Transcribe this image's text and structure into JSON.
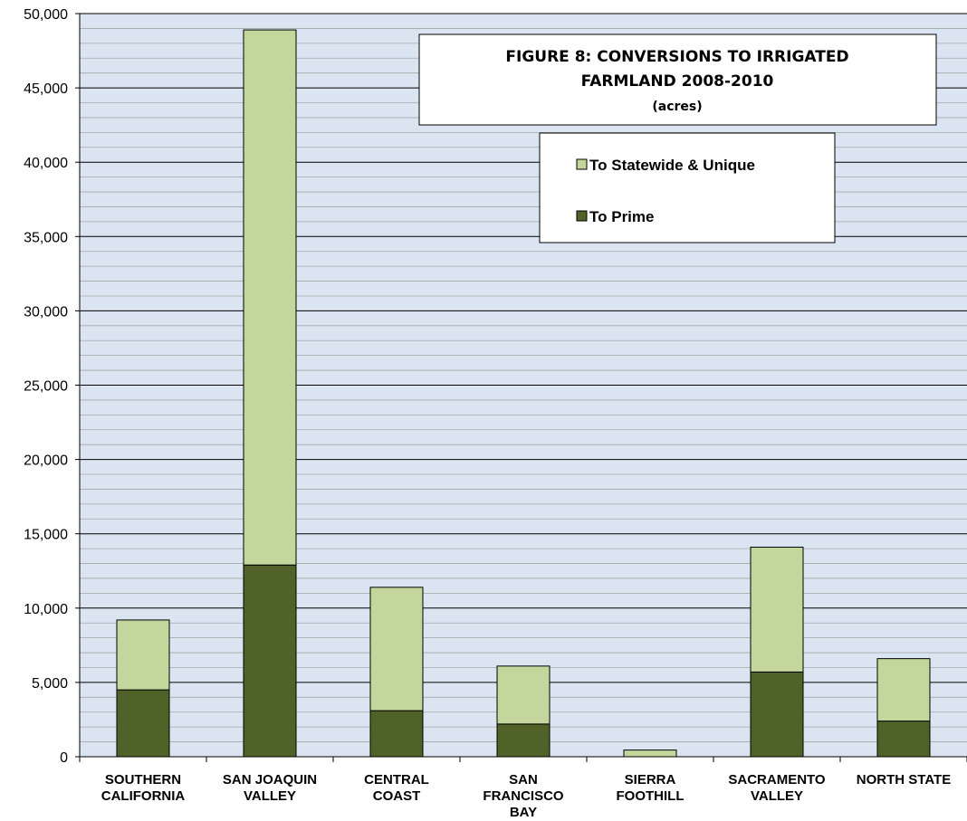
{
  "chart_data": {
    "type": "bar",
    "stacked": true,
    "title_lines": [
      "FIGURE 8: CONVERSIONS TO IRRIGATED",
      "FARMLAND 2008-2010",
      "(acres)"
    ],
    "categories": [
      [
        "SOUTHERN",
        "CALIFORNIA"
      ],
      [
        "SAN JOAQUIN",
        "VALLEY"
      ],
      [
        "CENTRAL",
        "COAST"
      ],
      [
        "SAN",
        "FRANCISCO",
        "BAY"
      ],
      [
        "SIERRA",
        "FOOTHILL"
      ],
      [
        "SACRAMENTO",
        "VALLEY"
      ],
      [
        "NORTH STATE"
      ]
    ],
    "series": [
      {
        "name": "To Prime",
        "color": "#4f6228",
        "values": [
          4500,
          12900,
          3100,
          2200,
          0,
          5700,
          2400
        ]
      },
      {
        "name": "To Statewide & Unique",
        "color": "#c3d69b",
        "values": [
          4700,
          36000,
          8300,
          3900,
          450,
          8400,
          4200
        ]
      }
    ],
    "legend_order": [
      "To Statewide & Unique",
      "To Prime"
    ],
    "y_ticks": [
      "0",
      "5,000",
      "10,000",
      "15,000",
      "20,000",
      "25,000",
      "30,000",
      "35,000",
      "40,000",
      "45,000",
      "50,000"
    ],
    "ylim": [
      0,
      50000
    ],
    "major_step": 5000,
    "minor_step": 1000,
    "grid": true,
    "plot_background": "#dbe5f1",
    "legend_placement": "top-right"
  }
}
